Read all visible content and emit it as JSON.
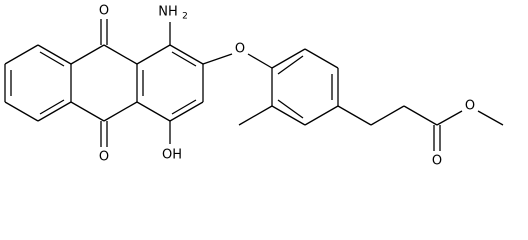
{
  "molecule": {
    "atoms": [
      {
        "label": "O"
      },
      {
        "label": "NH",
        "subscript": "2"
      },
      {
        "label": "O"
      },
      {
        "label": "OH"
      },
      {
        "label": "O"
      },
      {
        "label": "O"
      },
      {
        "label": "O"
      }
    ]
  }
}
